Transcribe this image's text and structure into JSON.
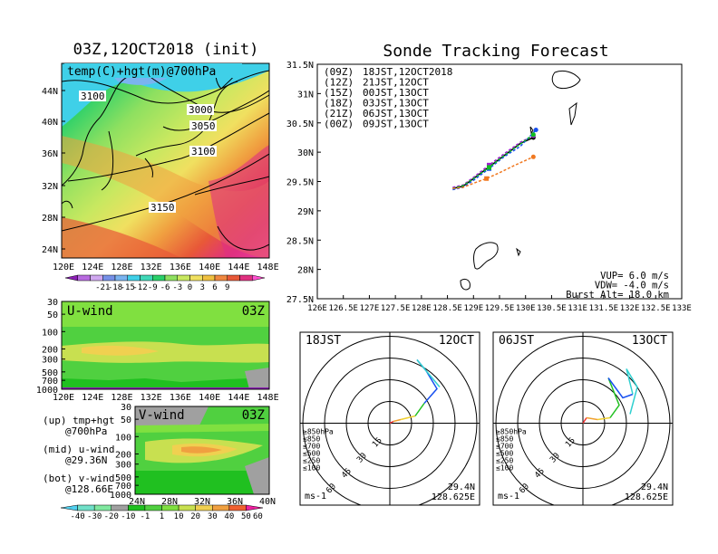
{
  "colors": {
    "temp_scale": [
      "#8b1fb4",
      "#b86ae0",
      "#d0a8f0",
      "#7690e8",
      "#7ab4f0",
      "#3fd0e8",
      "#40d8b8",
      "#2ad06a",
      "#8ee060",
      "#c8e860",
      "#f0e060",
      "#f0c040",
      "#f08840",
      "#e85838",
      "#e03080",
      "#ff50d0"
    ],
    "wind_scale": [
      "#50d0f0",
      "#70e0c8",
      "#80e8a0",
      "#a0a0a0",
      "#20c020",
      "#50d040",
      "#80e040",
      "#c8e050",
      "#f0d050",
      "#f0a040",
      "#f06030",
      "#f020a0"
    ],
    "track_09Z": "#000000",
    "track_12Z": "#a020d0",
    "track_15Z": "#1850f0",
    "track_18Z": "#10c020",
    "track_21Z": "#f0c030",
    "track_00Z": "#f07820"
  },
  "left_panel": {
    "title": "03Z,12OCT2018 (init)",
    "map_label": "temp(C)+hgt(m)@700hPa",
    "lat_ticks": [
      "44N",
      "40N",
      "36N",
      "32N",
      "28N",
      "24N"
    ],
    "lon_ticks": [
      "120E",
      "124E",
      "128E",
      "132E",
      "136E",
      "140E",
      "144E",
      "148E"
    ],
    "contour_labels": [
      "3100",
      "3000",
      "3050",
      "3100",
      "3150"
    ],
    "temp_colorbar_labels": [
      "-21",
      "-18",
      "-15",
      "-12",
      "-9",
      "-6",
      "-3",
      "0",
      "3",
      "6",
      "9"
    ],
    "uwind": {
      "label": "U-wind",
      "time": "03Z",
      "p_ticks": [
        "30",
        "50",
        "100",
        "200",
        "300",
        "500",
        "700",
        "1000"
      ],
      "lon_ticks": [
        "120E",
        "124E",
        "128E",
        "132E",
        "136E",
        "140E",
        "144E",
        "148E"
      ]
    },
    "vwind": {
      "label": "V-wind",
      "time": "03Z",
      "p_ticks": [
        "30",
        "50",
        "100",
        "200",
        "300",
        "500",
        "700",
        "1000"
      ],
      "lat_ticks": [
        "24N",
        "28N",
        "32N",
        "36N",
        "40N"
      ]
    },
    "legend_lines": [
      "(up) tmp+hgt",
      "@700hPa",
      "(mid) u-wind",
      "@29.36N",
      "(bot) v-wind",
      "@128.66E"
    ],
    "wind_colorbar_labels": [
      "-40",
      "-30",
      "-20",
      "-10",
      "-1",
      "1",
      "10",
      "20",
      "30",
      "40",
      "50",
      "60"
    ]
  },
  "tracking": {
    "title": "Sonde Tracking Forecast",
    "y_ticks": [
      "31.5N",
      "31N",
      "30.5N",
      "30N",
      "29.5N",
      "29N",
      "28.5N",
      "28N",
      "27.5N"
    ],
    "x_ticks": [
      "126E",
      "126.5E",
      "127E",
      "127.5E",
      "128E",
      "128.5E",
      "129E",
      "129.5E",
      "130E",
      "130.5E",
      "131E",
      "131.5E",
      "132E",
      "132.5E",
      "133E"
    ],
    "legend": [
      {
        "code": "(09Z)",
        "label": "18JST,12OCT2018",
        "color": "#000000"
      },
      {
        "code": "(12Z)",
        "label": "21JST,12OCT",
        "color": "#a020d0"
      },
      {
        "code": "(15Z)",
        "label": "00JST,13OCT",
        "color": "#1850f0"
      },
      {
        "code": "(18Z)",
        "label": "03JST,13OCT",
        "color": "#10c020"
      },
      {
        "code": "(21Z)",
        "label": "06JST,13OCT",
        "color": "#f0c030"
      },
      {
        "code": "(00Z)",
        "label": "09JST,13OCT",
        "color": "#f07820"
      }
    ],
    "params": [
      "VUP= 6.0 m/s",
      "VDW= -4.0 m/s",
      "Burst Alt= 18.0 km"
    ]
  },
  "chart_data": [
    {
      "type": "line",
      "title": "Sonde Tracking Forecast",
      "xlim": [
        126,
        133
      ],
      "ylim": [
        27.5,
        31.5
      ],
      "series": [
        {
          "name": "(09Z) 18JST,12OCT2018",
          "x": [
            128.6,
            128.8,
            129.0,
            129.3,
            129.6,
            129.9,
            130.15
          ],
          "y": [
            29.38,
            29.42,
            29.55,
            29.75,
            29.95,
            30.15,
            30.25
          ]
        },
        {
          "name": "(12Z) 21JST,12OCT",
          "x": [
            128.6,
            128.8,
            129.0,
            129.3,
            129.6,
            129.9,
            130.15
          ],
          "y": [
            29.4,
            29.44,
            29.57,
            29.78,
            29.98,
            30.17,
            30.28
          ]
        },
        {
          "name": "(15Z) 00JST,13OCT",
          "x": [
            128.6,
            128.8,
            129.0,
            129.3,
            129.6,
            129.9,
            130.2
          ],
          "y": [
            29.36,
            29.4,
            29.52,
            29.72,
            29.93,
            30.1,
            30.38
          ]
        },
        {
          "name": "(18Z) 03JST,13OCT",
          "x": [
            128.6,
            128.8,
            129.0,
            129.3,
            129.6,
            129.9,
            130.15
          ],
          "y": [
            29.38,
            29.43,
            29.55,
            29.74,
            29.95,
            30.14,
            30.3
          ]
        },
        {
          "name": "(00Z) 09JST,13OCT",
          "x": [
            128.6,
            128.8,
            129.0,
            129.25,
            129.5,
            129.8,
            130.15
          ],
          "y": [
            29.38,
            29.4,
            29.47,
            29.55,
            29.65,
            29.78,
            29.92
          ]
        }
      ]
    }
  ],
  "hodographs": [
    {
      "time": "18JST",
      "date": "12OCT",
      "ring_labels": [
        "15",
        "30",
        "45",
        "60"
      ],
      "legend": [
        "≥850hPa",
        "≤850",
        "≤700",
        "≤500",
        "≤250",
        "≤100"
      ],
      "lat": "29.4N",
      "lon": "128.625E",
      "unit": "ms-1"
    },
    {
      "time": "06JST",
      "date": "13OCT",
      "ring_labels": [
        "15",
        "30",
        "45",
        "60"
      ],
      "legend": [
        "≥850hPa",
        "≤850",
        "≤700",
        "≤500",
        "≤250",
        "≤100"
      ],
      "lat": "29.4N",
      "lon": "128.625E",
      "unit": "ms-1"
    }
  ]
}
